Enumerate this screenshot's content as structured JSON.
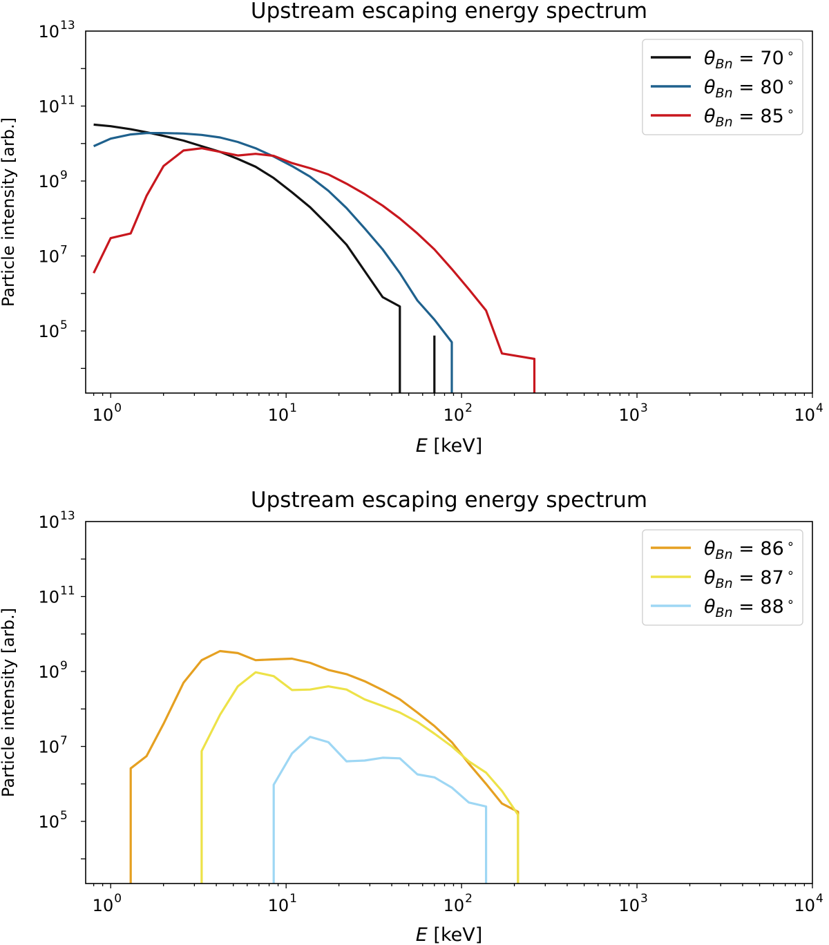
{
  "chart_data": [
    {
      "type": "line",
      "title": "Upstream escaping energy spectrum",
      "xlabel": "E [keV]",
      "ylabel": "Particle intensity [arb.]",
      "xscale": "log",
      "yscale": "log",
      "xlim": [
        0.72,
        10000
      ],
      "ylim": [
        2200,
        10000000000000
      ],
      "xticks": [
        {
          "base": "10",
          "exp": "0"
        },
        {
          "base": "10",
          "exp": "1"
        },
        {
          "base": "10",
          "exp": "2"
        },
        {
          "base": "10",
          "exp": "3"
        },
        {
          "base": "10",
          "exp": "4"
        }
      ],
      "yticks": [
        {
          "base": "10",
          "exp": "5"
        },
        {
          "base": "10",
          "exp": "7"
        },
        {
          "base": "10",
          "exp": "9"
        },
        {
          "base": "10",
          "exp": "11"
        },
        {
          "base": "10",
          "exp": "13"
        }
      ],
      "legend_position": "top-right",
      "series": [
        {
          "name": "θBn = 70°",
          "label_sub": "Bn",
          "label_value": "70",
          "color": "#111111",
          "segments": [
            [
              [
                0.8,
                32000000000.0
              ],
              [
                1.0,
                29000000000.0
              ],
              [
                1.3,
                24000000000.0
              ],
              [
                1.6,
                20000000000.0
              ],
              [
                2.0,
                16000000000.0
              ],
              [
                2.6,
                12000000000.0
              ],
              [
                3.3,
                8500000000.0
              ],
              [
                4.2,
                6000000000.0
              ],
              [
                5.3,
                3900000000.0
              ],
              [
                6.7,
                2400000000.0
              ],
              [
                8.5,
                1200000000.0
              ],
              [
                10.8,
                500000000.0
              ],
              [
                13.7,
                200000000.0
              ],
              [
                17.4,
                65000000.0
              ],
              [
                22.1,
                20000000.0
              ],
              [
                28.0,
                4000000.0
              ],
              [
                35.5,
                800000.0
              ],
              [
                44.5,
                450000.0
              ],
              [
                44.5,
                1000.0
              ]
            ],
            [
              [
                70.0,
                1000.0
              ],
              [
                70.0,
                75000.0
              ]
            ]
          ]
        },
        {
          "name": "θBn = 80°",
          "label_sub": "Bn",
          "label_value": "80",
          "color": "#1f618d",
          "segments": [
            [
              [
                0.8,
                8500000000.0
              ],
              [
                1.0,
                13500000000.0
              ],
              [
                1.3,
                17500000000.0
              ],
              [
                1.6,
                19000000000.0
              ],
              [
                2.0,
                19000000000.0
              ],
              [
                2.6,
                18500000000.0
              ],
              [
                3.3,
                17000000000.0
              ],
              [
                4.2,
                14500000000.0
              ],
              [
                5.3,
                11000000000.0
              ],
              [
                6.7,
                7500000000.0
              ],
              [
                8.5,
                4500000000.0
              ],
              [
                10.8,
                2500000000.0
              ],
              [
                13.7,
                1300000000.0
              ],
              [
                17.4,
                550000000.0
              ],
              [
                22.1,
                190000000.0
              ],
              [
                28.0,
                55000000.0
              ],
              [
                35.5,
                15000000.0
              ],
              [
                44.5,
                3500000.0
              ],
              [
                56.0,
                650000.0
              ],
              [
                70.0,
                200000.0
              ],
              [
                88.0,
                50000.0
              ],
              [
                88.0,
                1000.0
              ]
            ]
          ]
        },
        {
          "name": "θBn = 85°",
          "label_sub": "Bn",
          "label_value": "85",
          "color": "#c8171e",
          "segments": [
            [
              [
                0.8,
                3500000.0
              ],
              [
                1.0,
                30000000.0
              ],
              [
                1.3,
                40000000.0
              ],
              [
                1.6,
                400000000.0
              ],
              [
                2.0,
                2500000000.0
              ],
              [
                2.6,
                6500000000.0
              ],
              [
                3.3,
                7500000000.0
              ],
              [
                4.2,
                6000000000.0
              ],
              [
                5.3,
                4800000000.0
              ],
              [
                6.7,
                5300000000.0
              ],
              [
                8.5,
                4700000000.0
              ],
              [
                10.8,
                3000000000.0
              ],
              [
                13.7,
                2200000000.0
              ],
              [
                17.4,
                1500000000.0
              ],
              [
                22.1,
                850000000.0
              ],
              [
                28.0,
                450000000.0
              ],
              [
                35.5,
                220000000.0
              ],
              [
                44.5,
                100000000.0
              ],
              [
                56.0,
                40000000.0
              ],
              [
                70.0,
                15000000.0
              ],
              [
                88.0,
                4500000.0
              ],
              [
                110.0,
                1300000.0
              ],
              [
                138.0,
                350000.0
              ],
              [
                170.0,
                25000.0
              ],
              [
                260.0,
                18000.0
              ],
              [
                260.0,
                1000.0
              ]
            ]
          ]
        }
      ]
    },
    {
      "type": "line",
      "title": "Upstream escaping energy spectrum",
      "xlabel": "E [keV]",
      "ylabel": "Particle intensity [arb.]",
      "xscale": "log",
      "yscale": "log",
      "xlim": [
        0.72,
        10000
      ],
      "ylim": [
        2200,
        10000000000000
      ],
      "xticks": [
        {
          "base": "10",
          "exp": "0"
        },
        {
          "base": "10",
          "exp": "1"
        },
        {
          "base": "10",
          "exp": "2"
        },
        {
          "base": "10",
          "exp": "3"
        },
        {
          "base": "10",
          "exp": "4"
        }
      ],
      "yticks": [
        {
          "base": "10",
          "exp": "5"
        },
        {
          "base": "10",
          "exp": "7"
        },
        {
          "base": "10",
          "exp": "9"
        },
        {
          "base": "10",
          "exp": "11"
        },
        {
          "base": "10",
          "exp": "13"
        }
      ],
      "legend_position": "top-right",
      "series": [
        {
          "name": "θBn = 86°",
          "label_sub": "Bn",
          "label_value": "86",
          "color": "#e5a021",
          "segments": [
            [
              [
                1.3,
                1000.0
              ],
              [
                1.3,
                2600000.0
              ],
              [
                1.6,
                5500000.0
              ],
              [
                2.0,
                40000000.0
              ],
              [
                2.6,
                500000000.0
              ],
              [
                3.3,
                2000000000.0
              ],
              [
                4.2,
                3500000000.0
              ],
              [
                5.3,
                3100000000.0
              ],
              [
                6.7,
                2000000000.0
              ],
              [
                8.5,
                2100000000.0
              ],
              [
                10.8,
                2200000000.0
              ],
              [
                13.7,
                1700000000.0
              ],
              [
                17.4,
                1100000000.0
              ],
              [
                22.1,
                850000000.0
              ],
              [
                28.0,
                550000000.0
              ],
              [
                35.5,
                320000000.0
              ],
              [
                44.5,
                180000000.0
              ],
              [
                56.0,
                80000000.0
              ],
              [
                70.0,
                35000000.0
              ],
              [
                88.0,
                13000000.0
              ],
              [
                110.0,
                3500000.0
              ],
              [
                138.0,
                1000000.0
              ],
              [
                170.0,
                300000.0
              ],
              [
                210.0,
                180000.0
              ],
              [
                210.0,
                1000.0
              ]
            ]
          ]
        },
        {
          "name": "θBn = 87°",
          "label_sub": "Bn",
          "label_value": "87",
          "color": "#ede248",
          "segments": [
            [
              [
                3.3,
                1000.0
              ],
              [
                3.3,
                7500000.0
              ],
              [
                4.2,
                70000000.0
              ],
              [
                5.3,
                400000000.0
              ],
              [
                6.7,
                950000000.0
              ],
              [
                8.5,
                750000000.0
              ],
              [
                10.8,
                320000000.0
              ],
              [
                13.7,
                330000000.0
              ],
              [
                17.4,
                400000000.0
              ],
              [
                22.1,
                330000000.0
              ],
              [
                28.0,
                180000000.0
              ],
              [
                35.5,
                120000000.0
              ],
              [
                44.5,
                80000000.0
              ],
              [
                56.0,
                45000000.0
              ],
              [
                70.0,
                22000000.0
              ],
              [
                88.0,
                10000000.0
              ],
              [
                110.0,
                4000000.0
              ],
              [
                138.0,
                2000000.0
              ],
              [
                170.0,
                650000.0
              ],
              [
                210.0,
                150000.0
              ],
              [
                210.0,
                1000.0
              ]
            ]
          ]
        },
        {
          "name": "θBn = 88°",
          "label_sub": "Bn",
          "label_value": "88",
          "color": "#9ed7f4",
          "segments": [
            [
              [
                8.5,
                1000.0
              ],
              [
                8.5,
                950000.0
              ],
              [
                10.8,
                6500000.0
              ],
              [
                13.7,
                18000000.0
              ],
              [
                17.4,
                13000000.0
              ],
              [
                22.1,
                4000000.0
              ],
              [
                28.0,
                4200000.0
              ],
              [
                35.5,
                5000000.0
              ],
              [
                44.5,
                4800000.0
              ],
              [
                56.0,
                1800000.0
              ],
              [
                70.0,
                1500000.0
              ],
              [
                88.0,
                800000.0
              ],
              [
                110.0,
                320000.0
              ],
              [
                138.0,
                250000.0
              ],
              [
                138.0,
                1000.0
              ]
            ]
          ]
        }
      ]
    }
  ]
}
